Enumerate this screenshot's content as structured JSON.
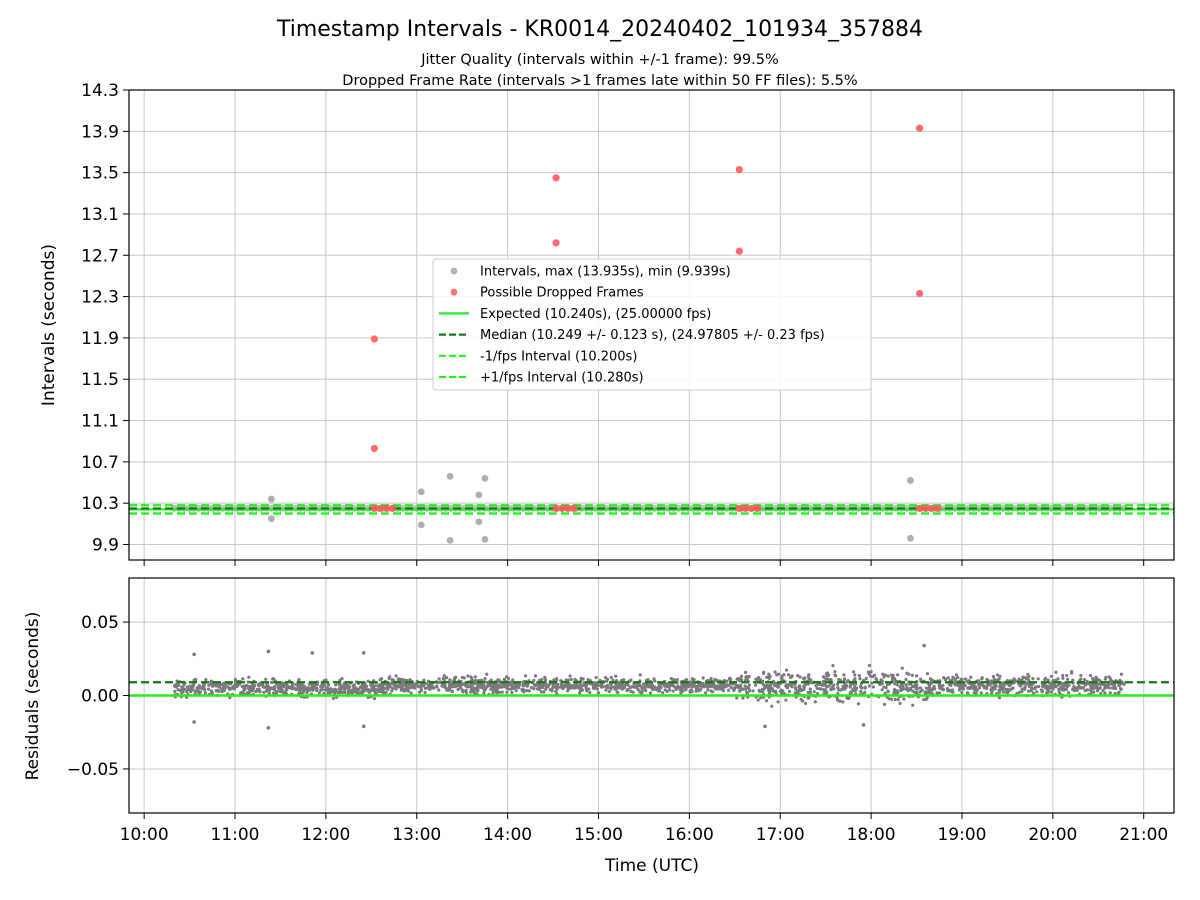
{
  "figure": {
    "title": "Timestamp Intervals - KR0014_20240402_101934_357884",
    "subtitle_line1": "Jitter Quality (intervals within +/-1 frame): 99.5%",
    "subtitle_line2": "Dropped Frame Rate (intervals >1 frames late within 50 FF files): 5.5%"
  },
  "colors": {
    "intervals": "#a6a6a6",
    "dropped": "#ff5a5a",
    "expected": "#22ee22",
    "median": "#147814",
    "fps_band": "#22ee22",
    "residual_points": "#7a7a7a",
    "grid": "#c8c8c8"
  },
  "chart_data": [
    {
      "type": "scatter",
      "panel": "intervals",
      "ylabel": "Intervals (seconds)",
      "xlim": [
        "09:50",
        "21:20"
      ],
      "ylim": [
        9.75,
        14.3
      ],
      "yticks": [
        "9.9",
        "10.3",
        "10.7",
        "11.1",
        "11.5",
        "11.9",
        "12.3",
        "12.7",
        "13.1",
        "13.5",
        "13.9",
        "14.3"
      ],
      "grid": true,
      "legend_position": "center",
      "legend": [
        {
          "label": "Intervals, max (13.935s), min (9.939s)",
          "style": "gray-marker"
        },
        {
          "label": "Possible Dropped Frames",
          "style": "red-marker"
        },
        {
          "label": "Expected (10.240s), (25.00000 fps)",
          "style": "green-solid"
        },
        {
          "label": "Median (10.249 +/- 0.123 s), (24.97805 +/- 0.23 fps)",
          "style": "darkgreen-dashed"
        },
        {
          "label": "-1/fps Interval (10.200s)",
          "style": "green-dashed"
        },
        {
          "label": "+1/fps Interval (10.280s)",
          "style": "green-dashed"
        }
      ],
      "lines": {
        "expected": 10.24,
        "median": 10.249,
        "minus_fps": 10.2,
        "plus_fps": 10.28
      },
      "intervals_range": [
        "10:20",
        "20:48"
      ],
      "intervals_value": 10.249,
      "interval_outliers": [
        {
          "x": "11:24",
          "y": 10.34
        },
        {
          "x": "11:24",
          "y": 10.15
        },
        {
          "x": "13:03",
          "y": 10.41
        },
        {
          "x": "13:03",
          "y": 10.09
        },
        {
          "x": "13:22",
          "y": 10.56
        },
        {
          "x": "13:22",
          "y": 9.94
        },
        {
          "x": "13:41",
          "y": 10.38
        },
        {
          "x": "13:41",
          "y": 10.12
        },
        {
          "x": "13:45",
          "y": 10.54
        },
        {
          "x": "13:45",
          "y": 9.95
        },
        {
          "x": "18:26",
          "y": 10.52
        },
        {
          "x": "18:26",
          "y": 9.96
        }
      ],
      "dropped_frames": [
        {
          "x": "12:32",
          "y": 11.89
        },
        {
          "x": "12:32",
          "y": 10.83
        },
        {
          "x": "12:32",
          "y": 10.25
        },
        {
          "x": "12:36",
          "y": 10.25
        },
        {
          "x": "12:40",
          "y": 10.25
        },
        {
          "x": "12:44",
          "y": 10.25
        },
        {
          "x": "14:32",
          "y": 13.45
        },
        {
          "x": "14:32",
          "y": 12.82
        },
        {
          "x": "14:32",
          "y": 10.25
        },
        {
          "x": "14:36",
          "y": 10.25
        },
        {
          "x": "14:40",
          "y": 10.25
        },
        {
          "x": "14:44",
          "y": 10.25
        },
        {
          "x": "16:33",
          "y": 13.53
        },
        {
          "x": "16:33",
          "y": 12.74
        },
        {
          "x": "16:33",
          "y": 10.25
        },
        {
          "x": "16:37",
          "y": 10.25
        },
        {
          "x": "16:41",
          "y": 10.25
        },
        {
          "x": "16:45",
          "y": 10.25
        },
        {
          "x": "18:32",
          "y": 13.93
        },
        {
          "x": "18:32",
          "y": 12.33
        },
        {
          "x": "18:32",
          "y": 10.25
        },
        {
          "x": "18:36",
          "y": 10.25
        },
        {
          "x": "18:40",
          "y": 10.25
        },
        {
          "x": "18:44",
          "y": 10.25
        }
      ]
    },
    {
      "type": "scatter",
      "panel": "residuals",
      "xlabel": "Time (UTC)",
      "ylabel": "Residuals (seconds)",
      "xlim": [
        "09:50",
        "21:20"
      ],
      "ylim": [
        -0.08,
        0.08
      ],
      "xticks": [
        "10:00",
        "11:00",
        "12:00",
        "13:00",
        "14:00",
        "15:00",
        "16:00",
        "17:00",
        "18:00",
        "19:00",
        "20:00",
        "21:00"
      ],
      "yticks": [
        "0.05",
        "0.00",
        "−0.05"
      ],
      "ytick_values": [
        0.05,
        0.0,
        -0.05
      ],
      "grid": true,
      "lines": {
        "zero": 0.0,
        "median_offset": 0.009
      },
      "range": [
        "10:20",
        "20:48"
      ],
      "residual_envelope": [
        {
          "from": "10:20",
          "to": "12:40",
          "center": 0.005,
          "spread": 0.006
        },
        {
          "from": "12:40",
          "to": "16:30",
          "center": 0.007,
          "spread": 0.0055
        },
        {
          "from": "16:30",
          "to": "18:40",
          "center": 0.006,
          "spread": 0.011
        },
        {
          "from": "18:40",
          "to": "20:48",
          "center": 0.007,
          "spread": 0.007
        }
      ],
      "residual_outliers": [
        {
          "x": "10:33",
          "y": 0.028
        },
        {
          "x": "10:33",
          "y": -0.018
        },
        {
          "x": "11:22",
          "y": 0.03
        },
        {
          "x": "11:22",
          "y": -0.022
        },
        {
          "x": "11:51",
          "y": 0.029
        },
        {
          "x": "12:25",
          "y": 0.029
        },
        {
          "x": "12:25",
          "y": -0.021
        },
        {
          "x": "18:35",
          "y": 0.034
        },
        {
          "x": "16:50",
          "y": -0.021
        },
        {
          "x": "17:55",
          "y": -0.02
        }
      ]
    }
  ]
}
